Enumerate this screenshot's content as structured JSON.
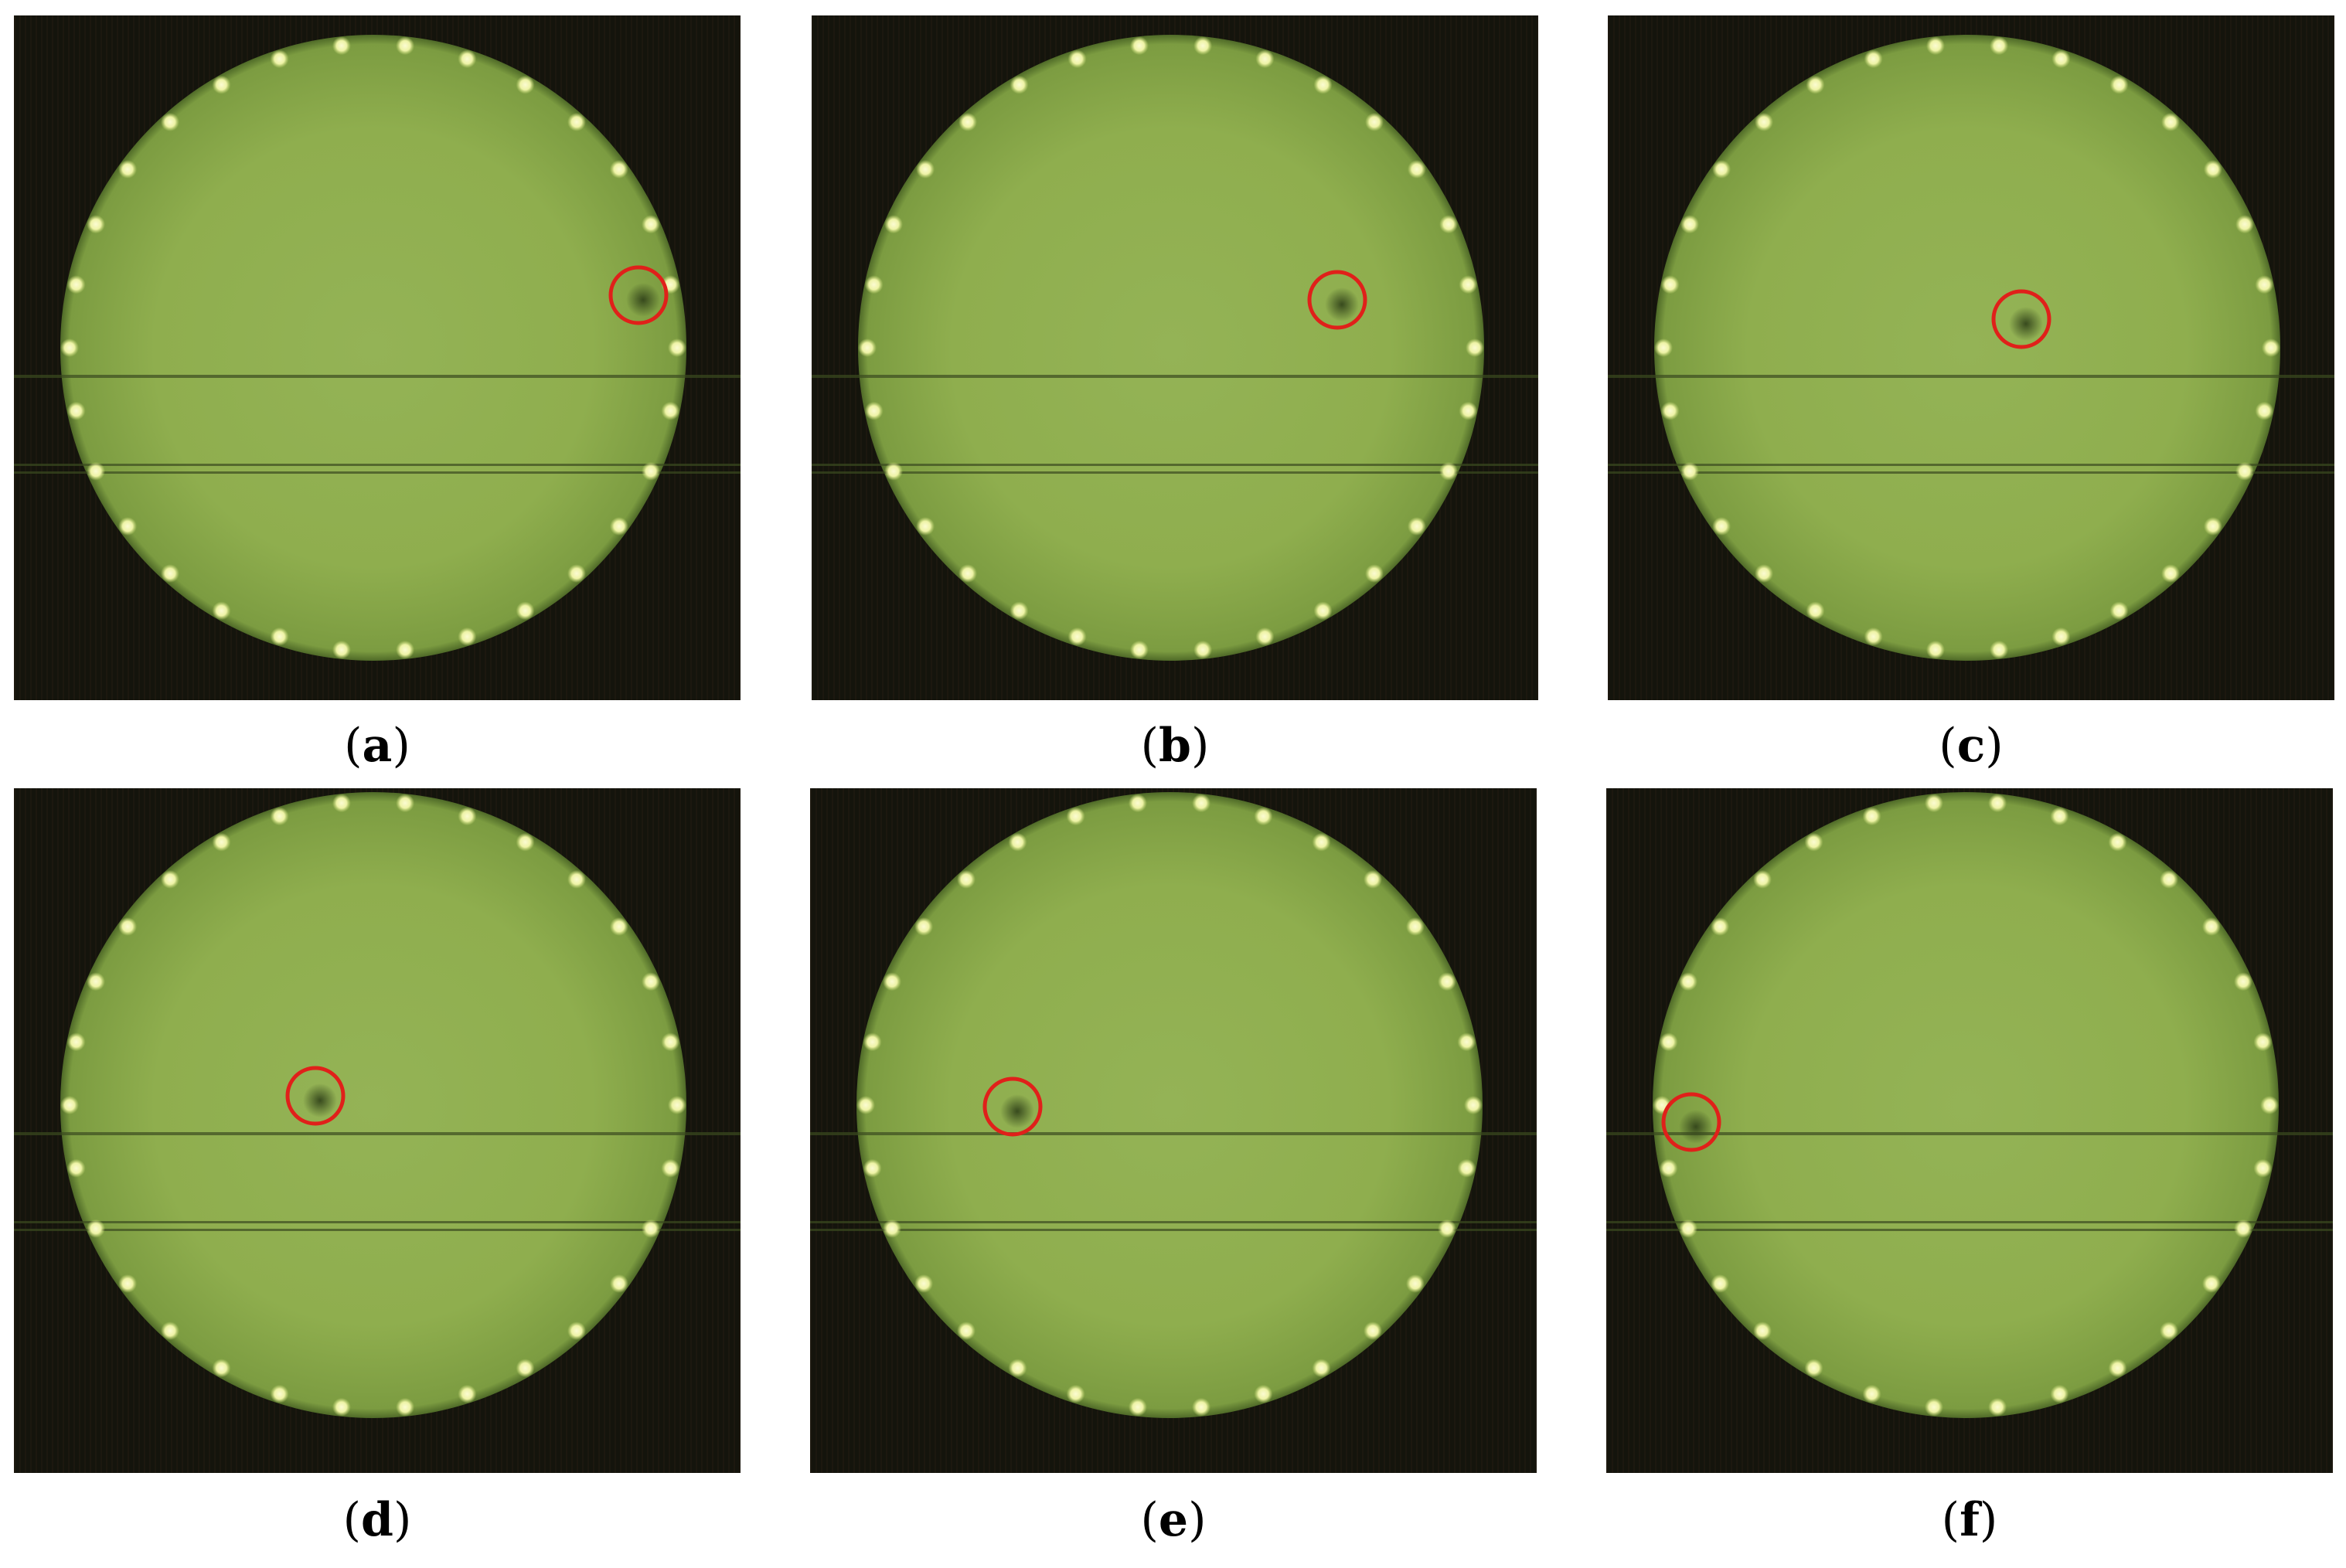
{
  "panels": [
    {
      "id": "a",
      "label": "a"
    },
    {
      "id": "b",
      "label": "b"
    },
    {
      "id": "c",
      "label": "c"
    },
    {
      "id": "d",
      "label": "d"
    },
    {
      "id": "e",
      "label": "e"
    },
    {
      "id": "f",
      "label": "f"
    }
  ],
  "colors": {
    "background": "#14140c",
    "disc": "#8fae4e",
    "disc_edge": "#4f6a28",
    "led": "#fbfbd2",
    "marker": "#e0201a"
  }
}
